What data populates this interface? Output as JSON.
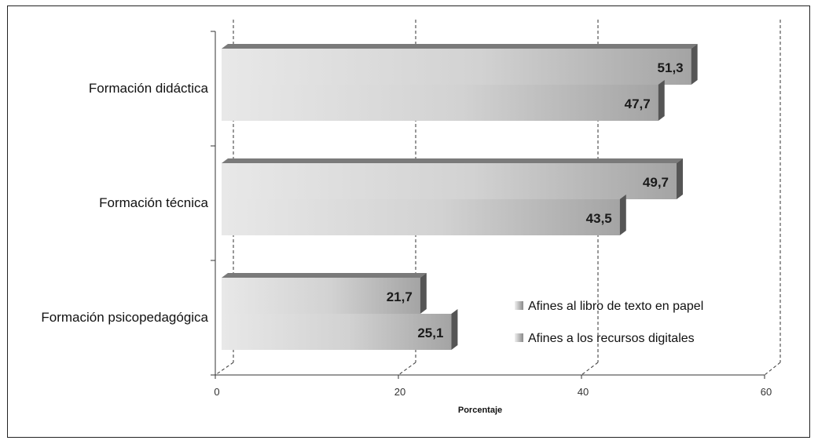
{
  "chart_data": {
    "type": "bar",
    "orientation": "horizontal",
    "categories": [
      "Formación didáctica",
      "Formación técnica",
      "Formación psicopedagógica"
    ],
    "series": [
      {
        "name": "Afines al libro de texto en papel",
        "values": [
          51.3,
          49.7,
          21.7
        ],
        "labels": [
          "51,3",
          "49,7",
          "21,7"
        ]
      },
      {
        "name": "Afines a los recursos digitales",
        "values": [
          47.7,
          43.5,
          25.1
        ],
        "labels": [
          "47,7",
          "43,5",
          "25,1"
        ]
      }
    ],
    "xlabel": "Porcentaje",
    "ylabel": "",
    "xlim": [
      0,
      60
    ],
    "xticks": [
      "0",
      "20",
      "40",
      "60"
    ],
    "grid": true,
    "legend_position": "bottom-right",
    "colors": {
      "bar_light": "#e6e6e6",
      "bar_dark": "#a8a8a8",
      "bar_end": "#555555",
      "bar_top": "#7a7a7a"
    }
  }
}
